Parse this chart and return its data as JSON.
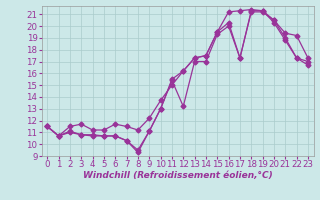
{
  "background_color": "#cce8e8",
  "grid_color": "#aacccc",
  "line_color": "#993399",
  "marker": "D",
  "markersize": 2.5,
  "linewidth": 0.9,
  "xlabel": "Windchill (Refroidissement éolien,°C)",
  "xlabel_fontsize": 6.5,
  "tick_fontsize": 6.2,
  "xlim": [
    -0.5,
    23.5
  ],
  "ylim": [
    9,
    21.7
  ],
  "yticks": [
    9,
    10,
    11,
    12,
    13,
    14,
    15,
    16,
    17,
    18,
    19,
    20,
    21
  ],
  "xticks": [
    0,
    1,
    2,
    3,
    4,
    5,
    6,
    7,
    8,
    9,
    10,
    11,
    12,
    13,
    14,
    15,
    16,
    17,
    18,
    19,
    20,
    21,
    22,
    23
  ],
  "series1_x": [
    0,
    1,
    2,
    3,
    4,
    5,
    6,
    7,
    8,
    9,
    10,
    11,
    12,
    13,
    14,
    15,
    16,
    17,
    18,
    19,
    20,
    21,
    22,
    23
  ],
  "series1_y": [
    11.5,
    10.7,
    11.1,
    10.8,
    10.8,
    10.7,
    10.7,
    10.3,
    9.3,
    11.1,
    13.0,
    15.4,
    13.2,
    17.0,
    17.0,
    19.3,
    20.0,
    17.3,
    21.2,
    21.2,
    20.5,
    19.0,
    17.3,
    16.7
  ],
  "series2_x": [
    0,
    1,
    2,
    3,
    4,
    5,
    6,
    7,
    8,
    9,
    10,
    11,
    12,
    13,
    14,
    15,
    16,
    17,
    18,
    19,
    20,
    21,
    22,
    23
  ],
  "series2_y": [
    11.5,
    10.7,
    11.5,
    11.7,
    11.2,
    11.2,
    11.7,
    11.5,
    11.2,
    12.2,
    13.7,
    15.0,
    16.2,
    17.3,
    17.5,
    19.5,
    21.2,
    21.3,
    21.4,
    21.3,
    20.5,
    19.4,
    19.2,
    17.3
  ],
  "series3_x": [
    0,
    1,
    2,
    3,
    4,
    5,
    6,
    7,
    8,
    9,
    10,
    11,
    12,
    13,
    14,
    15,
    16,
    17,
    18,
    19,
    20,
    21,
    22,
    23
  ],
  "series3_y": [
    11.5,
    10.7,
    11.0,
    10.8,
    10.7,
    10.7,
    10.7,
    10.3,
    9.5,
    11.1,
    13.0,
    15.5,
    16.2,
    17.3,
    17.5,
    19.5,
    20.3,
    17.3,
    21.3,
    21.3,
    20.3,
    18.8,
    17.3,
    17.0
  ]
}
